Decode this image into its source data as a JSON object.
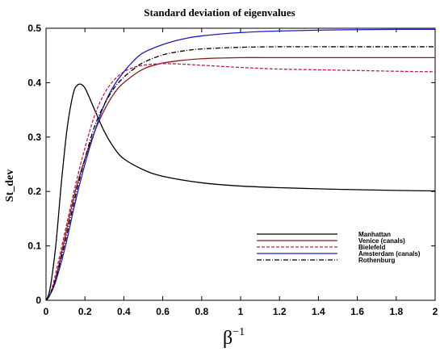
{
  "chart_data": {
    "type": "line",
    "title": "Standard deviation of eigenvalues",
    "xlabel_base": "β",
    "xlabel_exponent": "−1",
    "ylabel": "St_dev",
    "xlim": [
      0,
      2
    ],
    "ylim": [
      0,
      0.5
    ],
    "x_ticks": [
      0,
      0.2,
      0.4,
      0.6,
      0.8,
      1,
      1.2,
      1.4,
      1.6,
      1.8,
      2
    ],
    "x_tick_labels": [
      "0",
      "0.2",
      "0.4",
      "0.6",
      "0.8",
      "1",
      "1.2",
      "1.4",
      "1.6",
      "1.8",
      "2"
    ],
    "y_ticks": [
      0,
      0.1,
      0.2,
      0.3,
      0.4,
      0.5
    ],
    "y_tick_labels": [
      "0",
      "0.1",
      "0.2",
      "0.3",
      "0.4",
      "0.5"
    ],
    "grid": false,
    "legend_position": "bottom-right",
    "series": [
      {
        "name": "Manhattan",
        "color": "#000000",
        "dash": "solid",
        "x": [
          0,
          0.02,
          0.05,
          0.08,
          0.11,
          0.14,
          0.16,
          0.18,
          0.2,
          0.22,
          0.25,
          0.3,
          0.35,
          0.4,
          0.5,
          0.6,
          0.8,
          1.0,
          1.2,
          1.5,
          1.8,
          2.0
        ],
        "y": [
          0,
          0.02,
          0.1,
          0.22,
          0.32,
          0.38,
          0.395,
          0.397,
          0.39,
          0.375,
          0.35,
          0.31,
          0.28,
          0.26,
          0.24,
          0.228,
          0.216,
          0.21,
          0.207,
          0.204,
          0.202,
          0.201
        ]
      },
      {
        "name": "Venice (canals)",
        "color": "#8b1a1a",
        "dash": "solid",
        "x": [
          0,
          0.02,
          0.05,
          0.1,
          0.15,
          0.2,
          0.25,
          0.3,
          0.35,
          0.4,
          0.5,
          0.6,
          0.7,
          0.8,
          1.0,
          1.2,
          1.5,
          1.8,
          2.0
        ],
        "y": [
          0,
          0.01,
          0.04,
          0.12,
          0.2,
          0.26,
          0.31,
          0.35,
          0.38,
          0.4,
          0.425,
          0.436,
          0.441,
          0.444,
          0.446,
          0.446,
          0.446,
          0.446,
          0.446
        ]
      },
      {
        "name": "Bielefeld",
        "color": "#c2185b",
        "dash": "4,2",
        "x": [
          0,
          0.02,
          0.05,
          0.1,
          0.15,
          0.2,
          0.25,
          0.3,
          0.35,
          0.4,
          0.45,
          0.5,
          0.55,
          0.6,
          0.7,
          0.8,
          1.0,
          1.2,
          1.5,
          1.8,
          2.0
        ],
        "y": [
          0,
          0.01,
          0.05,
          0.13,
          0.21,
          0.28,
          0.34,
          0.38,
          0.405,
          0.42,
          0.428,
          0.432,
          0.434,
          0.435,
          0.434,
          0.432,
          0.428,
          0.425,
          0.423,
          0.421,
          0.42
        ]
      },
      {
        "name": "Amsterdam (canals)",
        "color": "#1a1acc",
        "dash": "solid",
        "x": [
          0,
          0.02,
          0.05,
          0.1,
          0.15,
          0.2,
          0.25,
          0.3,
          0.35,
          0.4,
          0.45,
          0.5,
          0.6,
          0.7,
          0.8,
          1.0,
          1.2,
          1.5,
          1.8,
          2.0
        ],
        "y": [
          0,
          0.01,
          0.035,
          0.1,
          0.18,
          0.25,
          0.31,
          0.36,
          0.395,
          0.42,
          0.44,
          0.455,
          0.47,
          0.48,
          0.486,
          0.492,
          0.495,
          0.497,
          0.498,
          0.498
        ]
      },
      {
        "name": "Rothenburg",
        "color": "#000000",
        "dash": "6,2,1,2",
        "x": [
          0,
          0.02,
          0.05,
          0.1,
          0.15,
          0.2,
          0.25,
          0.3,
          0.35,
          0.4,
          0.45,
          0.5,
          0.6,
          0.7,
          0.8,
          1.0,
          1.2,
          1.5,
          1.8,
          2.0
        ],
        "y": [
          0,
          0.01,
          0.04,
          0.11,
          0.19,
          0.26,
          0.32,
          0.36,
          0.39,
          0.41,
          0.425,
          0.437,
          0.451,
          0.458,
          0.462,
          0.465,
          0.466,
          0.466,
          0.466,
          0.466
        ]
      }
    ]
  }
}
